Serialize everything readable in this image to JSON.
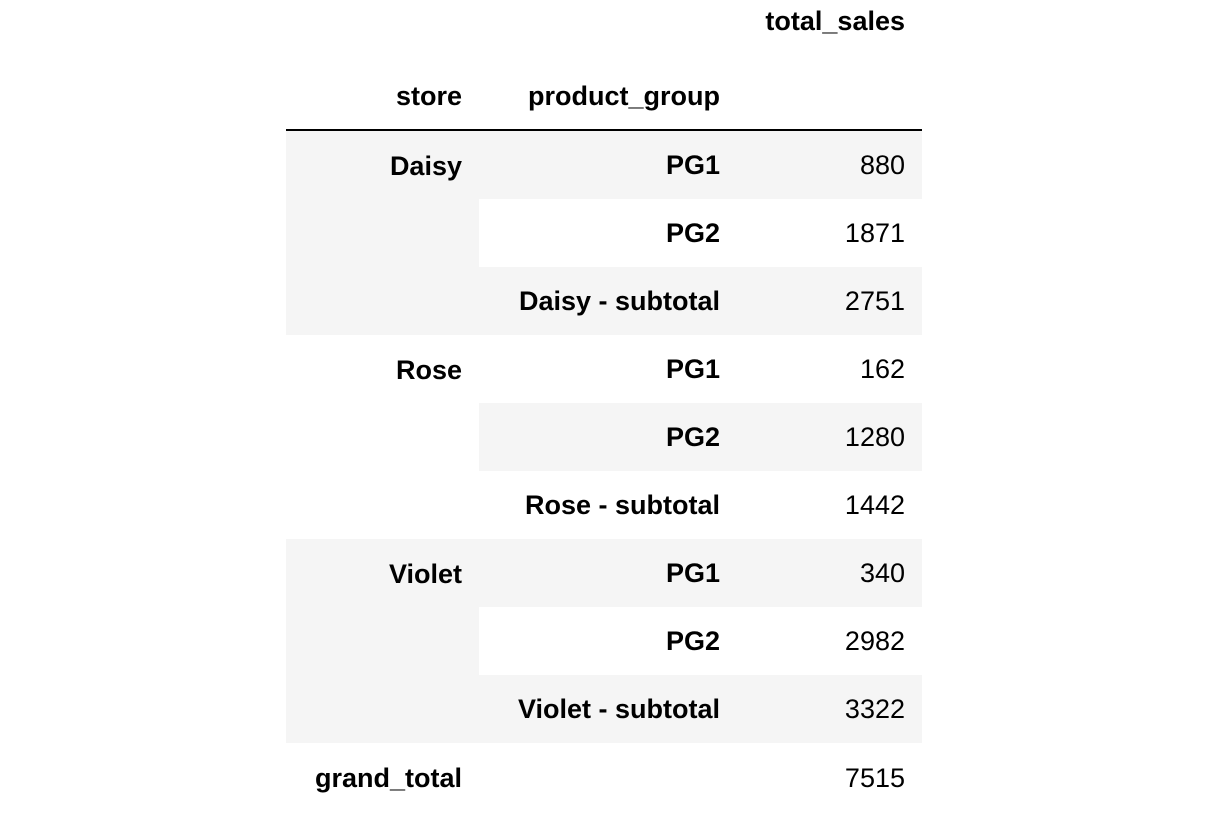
{
  "table": {
    "value_column_header": "total_sales",
    "index_headers": {
      "store": "store",
      "product_group": "product_group"
    },
    "rows": [
      {
        "store": "Daisy",
        "product_group": "PG1",
        "total_sales": "880"
      },
      {
        "store": "",
        "product_group": "PG2",
        "total_sales": "1871"
      },
      {
        "store": "",
        "product_group": "Daisy - subtotal",
        "total_sales": "2751"
      },
      {
        "store": "Rose",
        "product_group": "PG1",
        "total_sales": "162"
      },
      {
        "store": "",
        "product_group": "PG2",
        "total_sales": "1280"
      },
      {
        "store": "",
        "product_group": "Rose - subtotal",
        "total_sales": "1442"
      },
      {
        "store": "Violet",
        "product_group": "PG1",
        "total_sales": "340"
      },
      {
        "store": "",
        "product_group": "PG2",
        "total_sales": "2982"
      },
      {
        "store": "",
        "product_group": "Violet - subtotal",
        "total_sales": "3322"
      },
      {
        "store": "grand_total",
        "product_group": "",
        "total_sales": "7515"
      }
    ]
  }
}
